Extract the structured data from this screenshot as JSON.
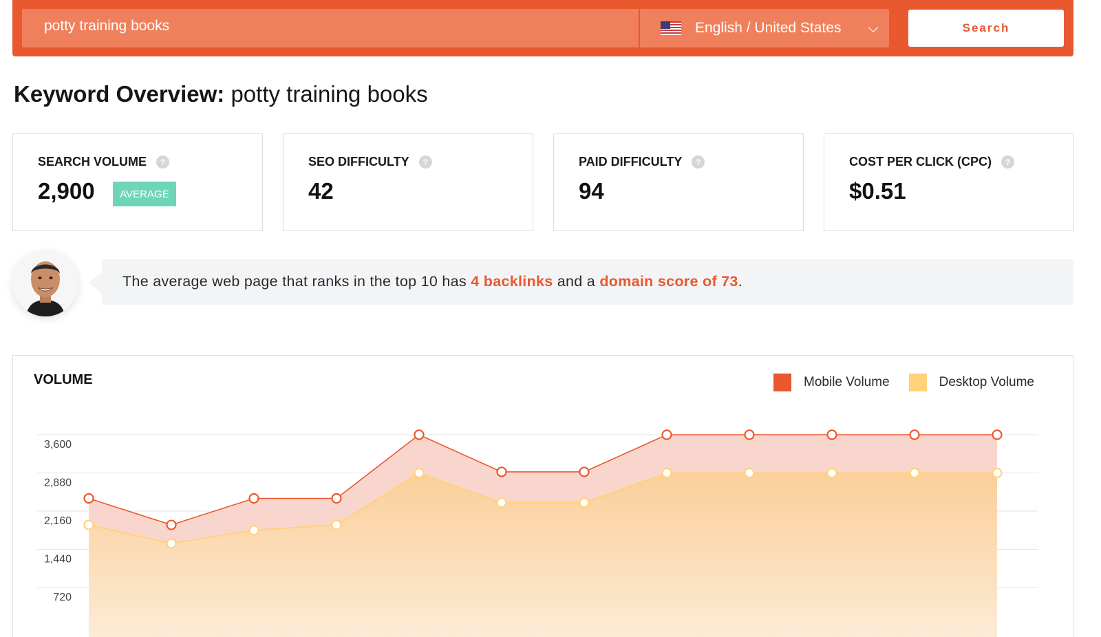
{
  "search": {
    "query": "potty training books",
    "language_label": "English / United States",
    "button_label": "Search"
  },
  "overview": {
    "title_prefix": "Keyword Overview:",
    "keyword": "potty training books"
  },
  "metrics": [
    {
      "label": "SEARCH VOLUME",
      "value": "2,900",
      "badge": "AVERAGE"
    },
    {
      "label": "SEO DIFFICULTY",
      "value": "42"
    },
    {
      "label": "PAID DIFFICULTY",
      "value": "94"
    },
    {
      "label": "COST PER CLICK (CPC)",
      "value": "$0.51"
    }
  ],
  "insight": {
    "part1": "The average web page that ranks in the top 10 has ",
    "backlinks": "4 backlinks",
    "part2": " and a ",
    "domain_score": "domain score of 73",
    "part3": "."
  },
  "colors": {
    "brand_orange": "#e9582e",
    "mobile": "#e9582e",
    "desktop": "#ffd27a",
    "badge_green": "#6ed6b6"
  },
  "chart_data": {
    "type": "area",
    "title": "VOLUME",
    "y_ticks": [
      3600,
      2880,
      2160,
      1440,
      720
    ],
    "ylim": [
      0,
      3600
    ],
    "grid": true,
    "legend_placement": "top-right",
    "series": [
      {
        "name": "Mobile Volume",
        "values": [
          2400,
          1900,
          2400,
          2400,
          3600,
          2900,
          2900,
          3600,
          3600,
          3600,
          3600,
          3600
        ]
      },
      {
        "name": "Desktop Volume",
        "values": [
          1900,
          1550,
          1800,
          1900,
          2880,
          2320,
          2320,
          2880,
          2880,
          2880,
          2880,
          2880
        ]
      }
    ]
  }
}
